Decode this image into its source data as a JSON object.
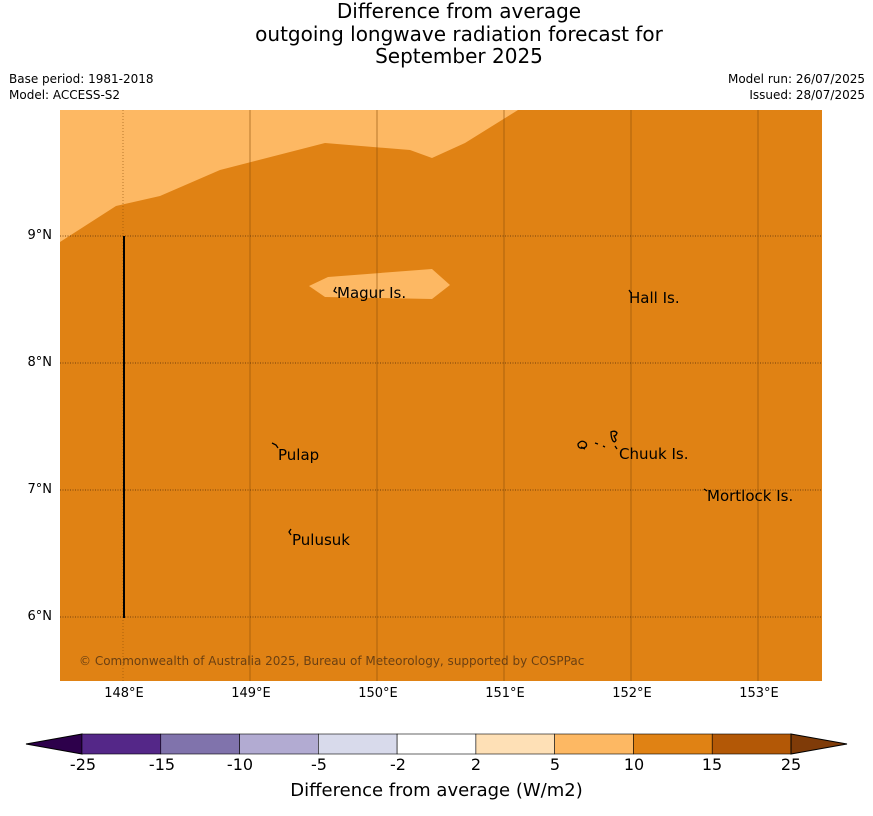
{
  "title": {
    "line1": "Difference from average",
    "line2": "outgoing longwave radiation forecast for",
    "line3": "September 2025"
  },
  "meta": {
    "base_period": "Base period: 1981-2018",
    "model": "Model: ACCESS-S2",
    "model_run": "Model run: 26/07/2025",
    "issued": "Issued: 28/07/2025"
  },
  "map": {
    "lat_labels": [
      "9°N",
      "8°N",
      "7°N",
      "6°N"
    ],
    "lon_labels": [
      "148°E",
      "149°E",
      "150°E",
      "151°E",
      "152°E",
      "153°E"
    ],
    "lon_range": [
      147.5,
      153.5
    ],
    "lat_range": [
      5.5,
      10.0
    ],
    "places": [
      {
        "name": "Magur Is.",
        "lon": 149.7,
        "lat": 8.57
      },
      {
        "name": "Hall Is.",
        "lon": 151.98,
        "lat": 8.53
      },
      {
        "name": "Pulap",
        "lon": 149.2,
        "lat": 7.29
      },
      {
        "name": "Chuuk Is.",
        "lon": 151.9,
        "lat": 7.29
      },
      {
        "name": "Mortlock Is.",
        "lon": 152.6,
        "lat": 6.95
      },
      {
        "name": "Pulusuk",
        "lon": 149.33,
        "lat": 6.62
      }
    ],
    "copyright": "© Commonwealth of Australia 2025, Bureau of Meteorology, supported by COSPPac",
    "fill_colors": {
      "main": "#e08214",
      "light": "#fdb863"
    }
  },
  "colorbar": {
    "label": "Difference from average (W/m2)",
    "ticks": [
      "-25",
      "-15",
      "-10",
      "-5",
      "-2",
      "2",
      "5",
      "10",
      "15",
      "25"
    ],
    "colors": [
      "#542788",
      "#8073ac",
      "#b2abd2",
      "#d8daeb",
      "#ffffff",
      "#fee0b6",
      "#fdb863",
      "#e08214",
      "#b35806"
    ],
    "extend_low_color": "#2d004b",
    "extend_high_color": "#7f3b08"
  }
}
